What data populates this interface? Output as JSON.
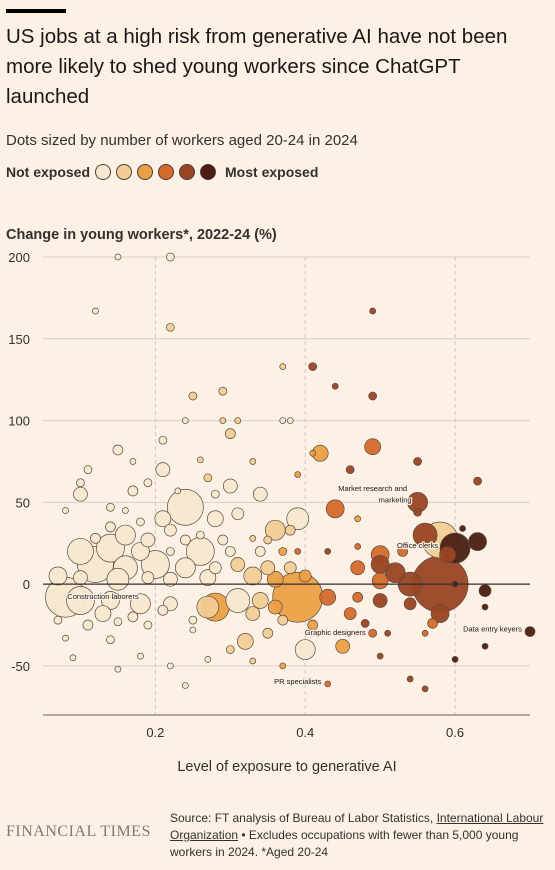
{
  "header": {
    "title": "US jobs at a high risk from generative AI have not been more likely to shed young workers since ChatGPT launched",
    "subtitle": "Dots sized by number of workers aged 20-24 in 2024"
  },
  "legend": {
    "left_label": "Not exposed",
    "right_label": "Most exposed",
    "colors": [
      "#f7e8cf",
      "#f2cc95",
      "#eb9f45",
      "#d46a2c",
      "#9a4423",
      "#4b1d12"
    ]
  },
  "footer": {
    "source_prefix": "Source: FT analysis of Bureau of Labor Statistics,",
    "source_link": "International Labour Organization",
    "source_suffix": "• Excludes occupations with fewer than 5,000 young workers in 2024. *Aged 20-24",
    "logo": "FINANCIAL TIMES"
  },
  "chart_data": {
    "type": "scatter",
    "ylabel": "Change in young workers*, 2022-24 (%)",
    "xlabel": "Level of exposure to generative AI",
    "xlim": [
      0.05,
      0.7
    ],
    "ylim": [
      -80,
      200
    ],
    "x_ticks": [
      0.2,
      0.4,
      0.6
    ],
    "x_tick_labels": [
      "0.2",
      "0.4",
      "0.6"
    ],
    "y_ticks": [
      -50,
      0,
      50,
      100,
      150,
      200
    ],
    "y_tick_labels": [
      "-50",
      "0",
      "50",
      "100",
      "150",
      "200"
    ],
    "gridlines": "horizontal solid, vertical dashed at x ticks",
    "zero_line": true,
    "size_encoding": "number of workers aged 20-24 in 2024",
    "color_encoding": "level of exposure",
    "annotations": [
      {
        "text": "Construction laborers",
        "x": 0.13,
        "y": -9
      },
      {
        "text": "Market research and",
        "x": 0.49,
        "y": 57
      },
      {
        "text": "marketing",
        "x": 0.52,
        "y": 50
      },
      {
        "text": "Office clerks",
        "x": 0.55,
        "y": 22
      },
      {
        "text": "Graphic designers",
        "x": 0.44,
        "y": -31
      },
      {
        "text": "Data entry keyers",
        "x": 0.65,
        "y": -29
      },
      {
        "text": "PR specialists",
        "x": 0.39,
        "y": -61
      }
    ],
    "points": [
      {
        "x": 0.15,
        "y": 200,
        "s": 3,
        "e": 0
      },
      {
        "x": 0.22,
        "y": 200,
        "s": 4,
        "e": 0
      },
      {
        "x": 0.12,
        "y": 167,
        "s": 3,
        "e": 0
      },
      {
        "x": 0.22,
        "y": 157,
        "s": 4,
        "e": 1
      },
      {
        "x": 0.49,
        "y": 167,
        "s": 3,
        "e": 4
      },
      {
        "x": 0.37,
        "y": 133,
        "s": 3,
        "e": 1
      },
      {
        "x": 0.41,
        "y": 133,
        "s": 4,
        "e": 4
      },
      {
        "x": 0.44,
        "y": 121,
        "s": 3,
        "e": 4
      },
      {
        "x": 0.49,
        "y": 115,
        "s": 4,
        "e": 4
      },
      {
        "x": 0.25,
        "y": 115,
        "s": 4,
        "e": 1
      },
      {
        "x": 0.29,
        "y": 118,
        "s": 4,
        "e": 1
      },
      {
        "x": 0.24,
        "y": 100,
        "s": 3,
        "e": 0
      },
      {
        "x": 0.29,
        "y": 100,
        "s": 3,
        "e": 1
      },
      {
        "x": 0.31,
        "y": 100,
        "s": 3,
        "e": 1
      },
      {
        "x": 0.37,
        "y": 100,
        "s": 3,
        "e": 0
      },
      {
        "x": 0.38,
        "y": 100,
        "s": 3,
        "e": 0
      },
      {
        "x": 0.3,
        "y": 92,
        "s": 5,
        "e": 1
      },
      {
        "x": 0.21,
        "y": 88,
        "s": 4,
        "e": 0
      },
      {
        "x": 0.15,
        "y": 82,
        "s": 5,
        "e": 0
      },
      {
        "x": 0.42,
        "y": 80,
        "s": 8,
        "e": 2
      },
      {
        "x": 0.41,
        "y": 80,
        "s": 3,
        "e": 2
      },
      {
        "x": 0.49,
        "y": 84,
        "s": 8,
        "e": 3
      },
      {
        "x": 0.33,
        "y": 75,
        "s": 3,
        "e": 1
      },
      {
        "x": 0.26,
        "y": 76,
        "s": 3,
        "e": 1
      },
      {
        "x": 0.21,
        "y": 70,
        "s": 7,
        "e": 0
      },
      {
        "x": 0.11,
        "y": 70,
        "s": 4,
        "e": 0
      },
      {
        "x": 0.17,
        "y": 75,
        "s": 3,
        "e": 0
      },
      {
        "x": 0.39,
        "y": 67,
        "s": 3,
        "e": 2
      },
      {
        "x": 0.46,
        "y": 70,
        "s": 4,
        "e": 4
      },
      {
        "x": 0.55,
        "y": 75,
        "s": 4,
        "e": 4
      },
      {
        "x": 0.63,
        "y": 63,
        "s": 4,
        "e": 4
      },
      {
        "x": 0.1,
        "y": 62,
        "s": 4,
        "e": 0
      },
      {
        "x": 0.19,
        "y": 62,
        "s": 4,
        "e": 0
      },
      {
        "x": 0.27,
        "y": 65,
        "s": 4,
        "e": 1
      },
      {
        "x": 0.3,
        "y": 60,
        "s": 7,
        "e": 0
      },
      {
        "x": 0.1,
        "y": 55,
        "s": 7,
        "e": 0
      },
      {
        "x": 0.17,
        "y": 57,
        "s": 5,
        "e": 0
      },
      {
        "x": 0.23,
        "y": 57,
        "s": 3,
        "e": 0
      },
      {
        "x": 0.28,
        "y": 55,
        "s": 4,
        "e": 0
      },
      {
        "x": 0.34,
        "y": 55,
        "s": 7,
        "e": 0
      },
      {
        "x": 0.24,
        "y": 47,
        "s": 18,
        "e": 0
      },
      {
        "x": 0.44,
        "y": 46,
        "s": 9,
        "e": 3
      },
      {
        "x": 0.55,
        "y": 50,
        "s": 10,
        "e": 4
      },
      {
        "x": 0.55,
        "y": 44,
        "s": 4,
        "e": 4
      },
      {
        "x": 0.08,
        "y": 45,
        "s": 3,
        "e": 0
      },
      {
        "x": 0.14,
        "y": 47,
        "s": 4,
        "e": 0
      },
      {
        "x": 0.16,
        "y": 45,
        "s": 3,
        "e": 0
      },
      {
        "x": 0.21,
        "y": 40,
        "s": 8,
        "e": 0
      },
      {
        "x": 0.28,
        "y": 40,
        "s": 8,
        "e": 0
      },
      {
        "x": 0.31,
        "y": 43,
        "s": 6,
        "e": 0
      },
      {
        "x": 0.39,
        "y": 40,
        "s": 11,
        "e": 0
      },
      {
        "x": 0.47,
        "y": 40,
        "s": 3,
        "e": 2
      },
      {
        "x": 0.14,
        "y": 35,
        "s": 5,
        "e": 0
      },
      {
        "x": 0.18,
        "y": 38,
        "s": 4,
        "e": 0
      },
      {
        "x": 0.22,
        "y": 33,
        "s": 6,
        "e": 0
      },
      {
        "x": 0.36,
        "y": 33,
        "s": 10,
        "e": 1
      },
      {
        "x": 0.38,
        "y": 33,
        "s": 5,
        "e": 1
      },
      {
        "x": 0.12,
        "y": 28,
        "s": 5,
        "e": 0
      },
      {
        "x": 0.16,
        "y": 30,
        "s": 10,
        "e": 0
      },
      {
        "x": 0.19,
        "y": 27,
        "s": 7,
        "e": 0
      },
      {
        "x": 0.24,
        "y": 27,
        "s": 5,
        "e": 0
      },
      {
        "x": 0.26,
        "y": 30,
        "s": 4,
        "e": 0
      },
      {
        "x": 0.29,
        "y": 27,
        "s": 5,
        "e": 0
      },
      {
        "x": 0.33,
        "y": 28,
        "s": 3,
        "e": 1
      },
      {
        "x": 0.35,
        "y": 27,
        "s": 4,
        "e": 1
      },
      {
        "x": 0.56,
        "y": 30,
        "s": 12,
        "e": 4
      },
      {
        "x": 0.58,
        "y": 27,
        "s": 18,
        "e": 1
      },
      {
        "x": 0.61,
        "y": 34,
        "s": 3,
        "e": 5
      },
      {
        "x": 0.63,
        "y": 26,
        "s": 9,
        "e": 5
      },
      {
        "x": 0.1,
        "y": 20,
        "s": 13,
        "e": 0
      },
      {
        "x": 0.14,
        "y": 22,
        "s": 14,
        "e": 0
      },
      {
        "x": 0.18,
        "y": 20,
        "s": 9,
        "e": 0
      },
      {
        "x": 0.22,
        "y": 20,
        "s": 4,
        "e": 0
      },
      {
        "x": 0.26,
        "y": 20,
        "s": 14,
        "e": 0
      },
      {
        "x": 0.3,
        "y": 20,
        "s": 5,
        "e": 0
      },
      {
        "x": 0.34,
        "y": 20,
        "s": 5,
        "e": 0
      },
      {
        "x": 0.37,
        "y": 20,
        "s": 4,
        "e": 2
      },
      {
        "x": 0.39,
        "y": 20,
        "s": 3,
        "e": 3
      },
      {
        "x": 0.43,
        "y": 20,
        "s": 3,
        "e": 4
      },
      {
        "x": 0.47,
        "y": 23,
        "s": 3,
        "e": 3
      },
      {
        "x": 0.5,
        "y": 18,
        "s": 9,
        "e": 3
      },
      {
        "x": 0.53,
        "y": 20,
        "s": 5,
        "e": 3
      },
      {
        "x": 0.6,
        "y": 22,
        "s": 15,
        "e": 5
      },
      {
        "x": 0.59,
        "y": 18,
        "s": 8,
        "e": 4
      },
      {
        "x": 0.12,
        "y": 12,
        "s": 18,
        "e": 0
      },
      {
        "x": 0.16,
        "y": 10,
        "s": 12,
        "e": 0
      },
      {
        "x": 0.2,
        "y": 12,
        "s": 14,
        "e": 0
      },
      {
        "x": 0.24,
        "y": 10,
        "s": 10,
        "e": 0
      },
      {
        "x": 0.28,
        "y": 10,
        "s": 6,
        "e": 0
      },
      {
        "x": 0.31,
        "y": 12,
        "s": 7,
        "e": 1
      },
      {
        "x": 0.35,
        "y": 10,
        "s": 7,
        "e": 1
      },
      {
        "x": 0.38,
        "y": 10,
        "s": 6,
        "e": 1
      },
      {
        "x": 0.47,
        "y": 10,
        "s": 7,
        "e": 3
      },
      {
        "x": 0.5,
        "y": 12,
        "s": 9,
        "e": 4
      },
      {
        "x": 0.52,
        "y": 7,
        "s": 10,
        "e": 4
      },
      {
        "x": 0.07,
        "y": 5,
        "s": 9,
        "e": 0
      },
      {
        "x": 0.1,
        "y": 4,
        "s": 7,
        "e": 0
      },
      {
        "x": 0.15,
        "y": 3,
        "s": 11,
        "e": 0
      },
      {
        "x": 0.19,
        "y": 4,
        "s": 6,
        "e": 0
      },
      {
        "x": 0.22,
        "y": 3,
        "s": 7,
        "e": 0
      },
      {
        "x": 0.27,
        "y": 4,
        "s": 8,
        "e": 0
      },
      {
        "x": 0.33,
        "y": 5,
        "s": 9,
        "e": 1
      },
      {
        "x": 0.36,
        "y": 3,
        "s": 8,
        "e": 2
      },
      {
        "x": 0.4,
        "y": 5,
        "s": 6,
        "e": 2
      },
      {
        "x": 0.5,
        "y": 2,
        "s": 8,
        "e": 3
      },
      {
        "x": 0.54,
        "y": 0,
        "s": 12,
        "e": 4
      },
      {
        "x": 0.58,
        "y": 0,
        "s": 28,
        "e": 4
      },
      {
        "x": 0.6,
        "y": 0,
        "s": 3,
        "e": 5
      },
      {
        "x": 0.64,
        "y": -4,
        "s": 6,
        "e": 5
      },
      {
        "x": 0.08,
        "y": -8,
        "s": 20,
        "e": 0
      },
      {
        "x": 0.1,
        "y": -10,
        "s": 14,
        "e": 0
      },
      {
        "x": 0.14,
        "y": -10,
        "s": 9,
        "e": 0
      },
      {
        "x": 0.18,
        "y": -12,
        "s": 10,
        "e": 0
      },
      {
        "x": 0.22,
        "y": -12,
        "s": 7,
        "e": 0
      },
      {
        "x": 0.27,
        "y": -14,
        "s": 11,
        "e": 1
      },
      {
        "x": 0.31,
        "y": -10,
        "s": 12,
        "e": 0
      },
      {
        "x": 0.34,
        "y": -10,
        "s": 8,
        "e": 1
      },
      {
        "x": 0.39,
        "y": -8,
        "s": 25,
        "e": 2
      },
      {
        "x": 0.43,
        "y": -8,
        "s": 8,
        "e": 3
      },
      {
        "x": 0.47,
        "y": -8,
        "s": 5,
        "e": 3
      },
      {
        "x": 0.5,
        "y": -10,
        "s": 7,
        "e": 4
      },
      {
        "x": 0.54,
        "y": -12,
        "s": 6,
        "e": 4
      },
      {
        "x": 0.64,
        "y": -14,
        "s": 3,
        "e": 5
      },
      {
        "x": 0.13,
        "y": -18,
        "s": 8,
        "e": 0
      },
      {
        "x": 0.17,
        "y": -20,
        "s": 5,
        "e": 0
      },
      {
        "x": 0.21,
        "y": -16,
        "s": 5,
        "e": 0
      },
      {
        "x": 0.28,
        "y": -14,
        "s": 14,
        "e": 2
      },
      {
        "x": 0.33,
        "y": -18,
        "s": 7,
        "e": 1
      },
      {
        "x": 0.36,
        "y": -14,
        "s": 7,
        "e": 2
      },
      {
        "x": 0.46,
        "y": -18,
        "s": 6,
        "e": 3
      },
      {
        "x": 0.58,
        "y": -18,
        "s": 9,
        "e": 4
      },
      {
        "x": 0.07,
        "y": -22,
        "s": 4,
        "e": 0
      },
      {
        "x": 0.11,
        "y": -25,
        "s": 5,
        "e": 0
      },
      {
        "x": 0.15,
        "y": -23,
        "s": 4,
        "e": 0
      },
      {
        "x": 0.19,
        "y": -25,
        "s": 4,
        "e": 0
      },
      {
        "x": 0.25,
        "y": -22,
        "s": 4,
        "e": 0
      },
      {
        "x": 0.37,
        "y": -22,
        "s": 5,
        "e": 1
      },
      {
        "x": 0.41,
        "y": -25,
        "s": 5,
        "e": 2
      },
      {
        "x": 0.48,
        "y": -24,
        "s": 4,
        "e": 4
      },
      {
        "x": 0.57,
        "y": -24,
        "s": 5,
        "e": 3
      },
      {
        "x": 0.08,
        "y": -33,
        "s": 3,
        "e": 0
      },
      {
        "x": 0.14,
        "y": -34,
        "s": 4,
        "e": 0
      },
      {
        "x": 0.25,
        "y": -28,
        "s": 3,
        "e": 0
      },
      {
        "x": 0.32,
        "y": -35,
        "s": 8,
        "e": 1
      },
      {
        "x": 0.35,
        "y": -30,
        "s": 5,
        "e": 1
      },
      {
        "x": 0.49,
        "y": -30,
        "s": 4,
        "e": 3
      },
      {
        "x": 0.51,
        "y": -30,
        "s": 3,
        "e": 4
      },
      {
        "x": 0.56,
        "y": -30,
        "s": 3,
        "e": 3
      },
      {
        "x": 0.4,
        "y": -40,
        "s": 10,
        "e": 0
      },
      {
        "x": 0.45,
        "y": -38,
        "s": 7,
        "e": 2
      },
      {
        "x": 0.3,
        "y": -40,
        "s": 4,
        "e": 1
      },
      {
        "x": 0.64,
        "y": -38,
        "s": 3,
        "e": 5
      },
      {
        "x": 0.09,
        "y": -45,
        "s": 3,
        "e": 0
      },
      {
        "x": 0.18,
        "y": -44,
        "s": 3,
        "e": 0
      },
      {
        "x": 0.27,
        "y": -46,
        "s": 3,
        "e": 0
      },
      {
        "x": 0.5,
        "y": -44,
        "s": 3,
        "e": 4
      },
      {
        "x": 0.6,
        "y": -46,
        "s": 3,
        "e": 5
      },
      {
        "x": 0.15,
        "y": -52,
        "s": 3,
        "e": 0
      },
      {
        "x": 0.22,
        "y": -50,
        "s": 3,
        "e": 0
      },
      {
        "x": 0.33,
        "y": -47,
        "s": 3,
        "e": 1
      },
      {
        "x": 0.37,
        "y": -50,
        "s": 3,
        "e": 2
      },
      {
        "x": 0.24,
        "y": -62,
        "s": 3,
        "e": 0
      },
      {
        "x": 0.43,
        "y": -61,
        "s": 3,
        "e": 3
      },
      {
        "x": 0.54,
        "y": -58,
        "s": 3,
        "e": 4
      },
      {
        "x": 0.56,
        "y": -64,
        "s": 3,
        "e": 4
      },
      {
        "x": 0.7,
        "y": -29,
        "s": 5,
        "e": 5
      }
    ]
  }
}
